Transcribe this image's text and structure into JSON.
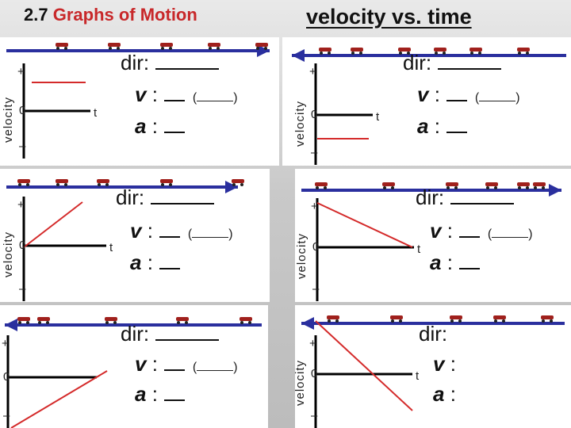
{
  "header": {
    "number": "2.7",
    "topic": "Graphs of Motion",
    "right_title": "velocity vs. time"
  },
  "panels": [
    {
      "id": "p1",
      "direction": "right",
      "axis_label": "velocity",
      "plus": "+",
      "zero": "0",
      "minus": "–",
      "t": "t",
      "dir": "dir:",
      "v": "v",
      "a": "a",
      "colon": ":",
      "paren_open": "(",
      "paren_close": ")",
      "line": "horizontal-positive"
    },
    {
      "id": "p2",
      "direction": "left",
      "axis_label": "velocity",
      "plus": "+",
      "zero": "0",
      "minus": "–",
      "t": "t",
      "dir": "dir:",
      "v": "v",
      "a": "a",
      "colon": ":",
      "paren_open": "(",
      "paren_close": ")",
      "line": "horizontal-negative"
    },
    {
      "id": "p3",
      "direction": "right",
      "axis_label": "velocity",
      "plus": "+",
      "zero": "0",
      "minus": "–",
      "t": "t",
      "dir": "dir:",
      "v": "v",
      "a": "a",
      "colon": ":",
      "paren_open": "(",
      "paren_close": ")",
      "line": "rising-from-zero"
    },
    {
      "id": "p4",
      "direction": "right",
      "axis_label": "velocity",
      "plus": "+",
      "zero": "0",
      "minus": "–",
      "t": "t",
      "dir": "dir:",
      "v": "v",
      "a": "a",
      "colon": ":",
      "paren_open": "(",
      "paren_close": ")",
      "line": "falling-to-zero"
    },
    {
      "id": "p5",
      "direction": "left",
      "axis_label": "velocity",
      "plus": "+",
      "zero": "0",
      "minus": "–",
      "t": "t",
      "dir": "dir:",
      "v": "v",
      "a": "a",
      "colon": ":",
      "paren_open": "(",
      "paren_close": ")",
      "line": "rising-from-negative"
    },
    {
      "id": "p6",
      "direction": "left",
      "axis_label": "velocity",
      "plus": "+",
      "zero": "0",
      "minus": "–",
      "t": "t",
      "dir": "dir:",
      "v": "v",
      "a": "a",
      "colon": ":",
      "line": "falling-to-negative"
    }
  ],
  "colors": {
    "arrow": "#2a2f9e",
    "graph": "#d42a2a",
    "car": "#a0201c"
  }
}
